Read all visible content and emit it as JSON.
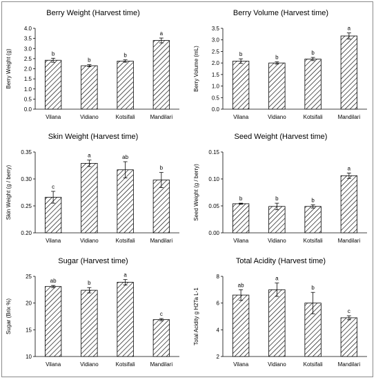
{
  "chart_data": [
    {
      "type": "bar",
      "title": "Berry Weight (Harvest time)",
      "ylabel": "Berry Weight (g)",
      "categories": [
        "Vilana",
        "Vidiano",
        "Kotsifali",
        "Mandilari"
      ],
      "values": [
        2.42,
        2.15,
        2.38,
        3.4
      ],
      "errors": [
        0.1,
        0.05,
        0.06,
        0.12
      ],
      "letters": [
        "b",
        "b",
        "b",
        "a"
      ],
      "ylim": [
        0.0,
        4.0
      ],
      "yticks": [
        "0.0",
        "0.5",
        "1.0",
        "1.5",
        "2.0",
        "2.5",
        "3.0",
        "3.5",
        "4.0"
      ]
    },
    {
      "type": "bar",
      "title": "Berry Volume (Harvest time)",
      "ylabel": "Berry Volume (mL)",
      "categories": [
        "Vilana",
        "Vidiano",
        "Kotsifali",
        "Mandilari"
      ],
      "values": [
        2.08,
        2.0,
        2.17,
        3.17
      ],
      "errors": [
        0.1,
        0.05,
        0.07,
        0.13
      ],
      "letters": [
        "b",
        "b",
        "b",
        "a"
      ],
      "ylim": [
        0.0,
        3.5
      ],
      "yticks": [
        "0.0",
        "0.5",
        "1.0",
        "1.5",
        "2.0",
        "2.5",
        "3.0",
        "3.5"
      ]
    },
    {
      "type": "bar",
      "title": "Skin Weight (Harvest time)",
      "ylabel": "Skin Weight (g / berry)",
      "categories": [
        "Vilana",
        "Vidiano",
        "Kotsifali",
        "Mandilari"
      ],
      "values": [
        0.266,
        0.329,
        0.317,
        0.298
      ],
      "errors": [
        0.011,
        0.006,
        0.015,
        0.014
      ],
      "letters": [
        "c",
        "a",
        "ab",
        "b"
      ],
      "ylim": [
        0.2,
        0.35
      ],
      "yticks": [
        "0.20",
        "0.25",
        "0.30",
        "0.35"
      ]
    },
    {
      "type": "bar",
      "title": "Seed Weight (Harvest time)",
      "ylabel": "Seed Weight (g / berry)",
      "categories": [
        "Vilana",
        "Vidiano",
        "Kotsifali",
        "Mandilari"
      ],
      "values": [
        0.054,
        0.049,
        0.049,
        0.106
      ],
      "errors": [
        0.001,
        0.006,
        0.003,
        0.005
      ],
      "letters": [
        "b",
        "b",
        "b",
        "a"
      ],
      "ylim": [
        0.0,
        0.15
      ],
      "yticks": [
        "0.00",
        "0.05",
        "0.10",
        "0.15"
      ]
    },
    {
      "type": "bar",
      "title": "Sugar (Harvest time)",
      "ylabel": "Sugar (Brix %)",
      "categories": [
        "Vilana",
        "Vidiano",
        "Kotsifali",
        "Mandilari"
      ],
      "values": [
        23.1,
        22.4,
        23.9,
        16.9
      ],
      "errors": [
        0.2,
        0.5,
        0.5,
        0.2
      ],
      "letters": [
        "ab",
        "b",
        "a",
        "c"
      ],
      "ylim": [
        10,
        25
      ],
      "yticks": [
        "10",
        "15",
        "20",
        "25"
      ]
    },
    {
      "type": "bar",
      "title": "Total Acidity (Harvest time)",
      "ylabel": "Total Acidity g H2Ta L-1",
      "categories": [
        "Vilana",
        "Vidiano",
        "Kotsifali",
        "Mandilari"
      ],
      "values": [
        6.6,
        7.0,
        6.0,
        4.9
      ],
      "errors": [
        0.4,
        0.5,
        0.8,
        0.15
      ],
      "letters": [
        "ab",
        "a",
        "b",
        "c"
      ],
      "ylim": [
        2,
        8
      ],
      "yticks": [
        "2",
        "4",
        "6",
        "8"
      ]
    }
  ]
}
